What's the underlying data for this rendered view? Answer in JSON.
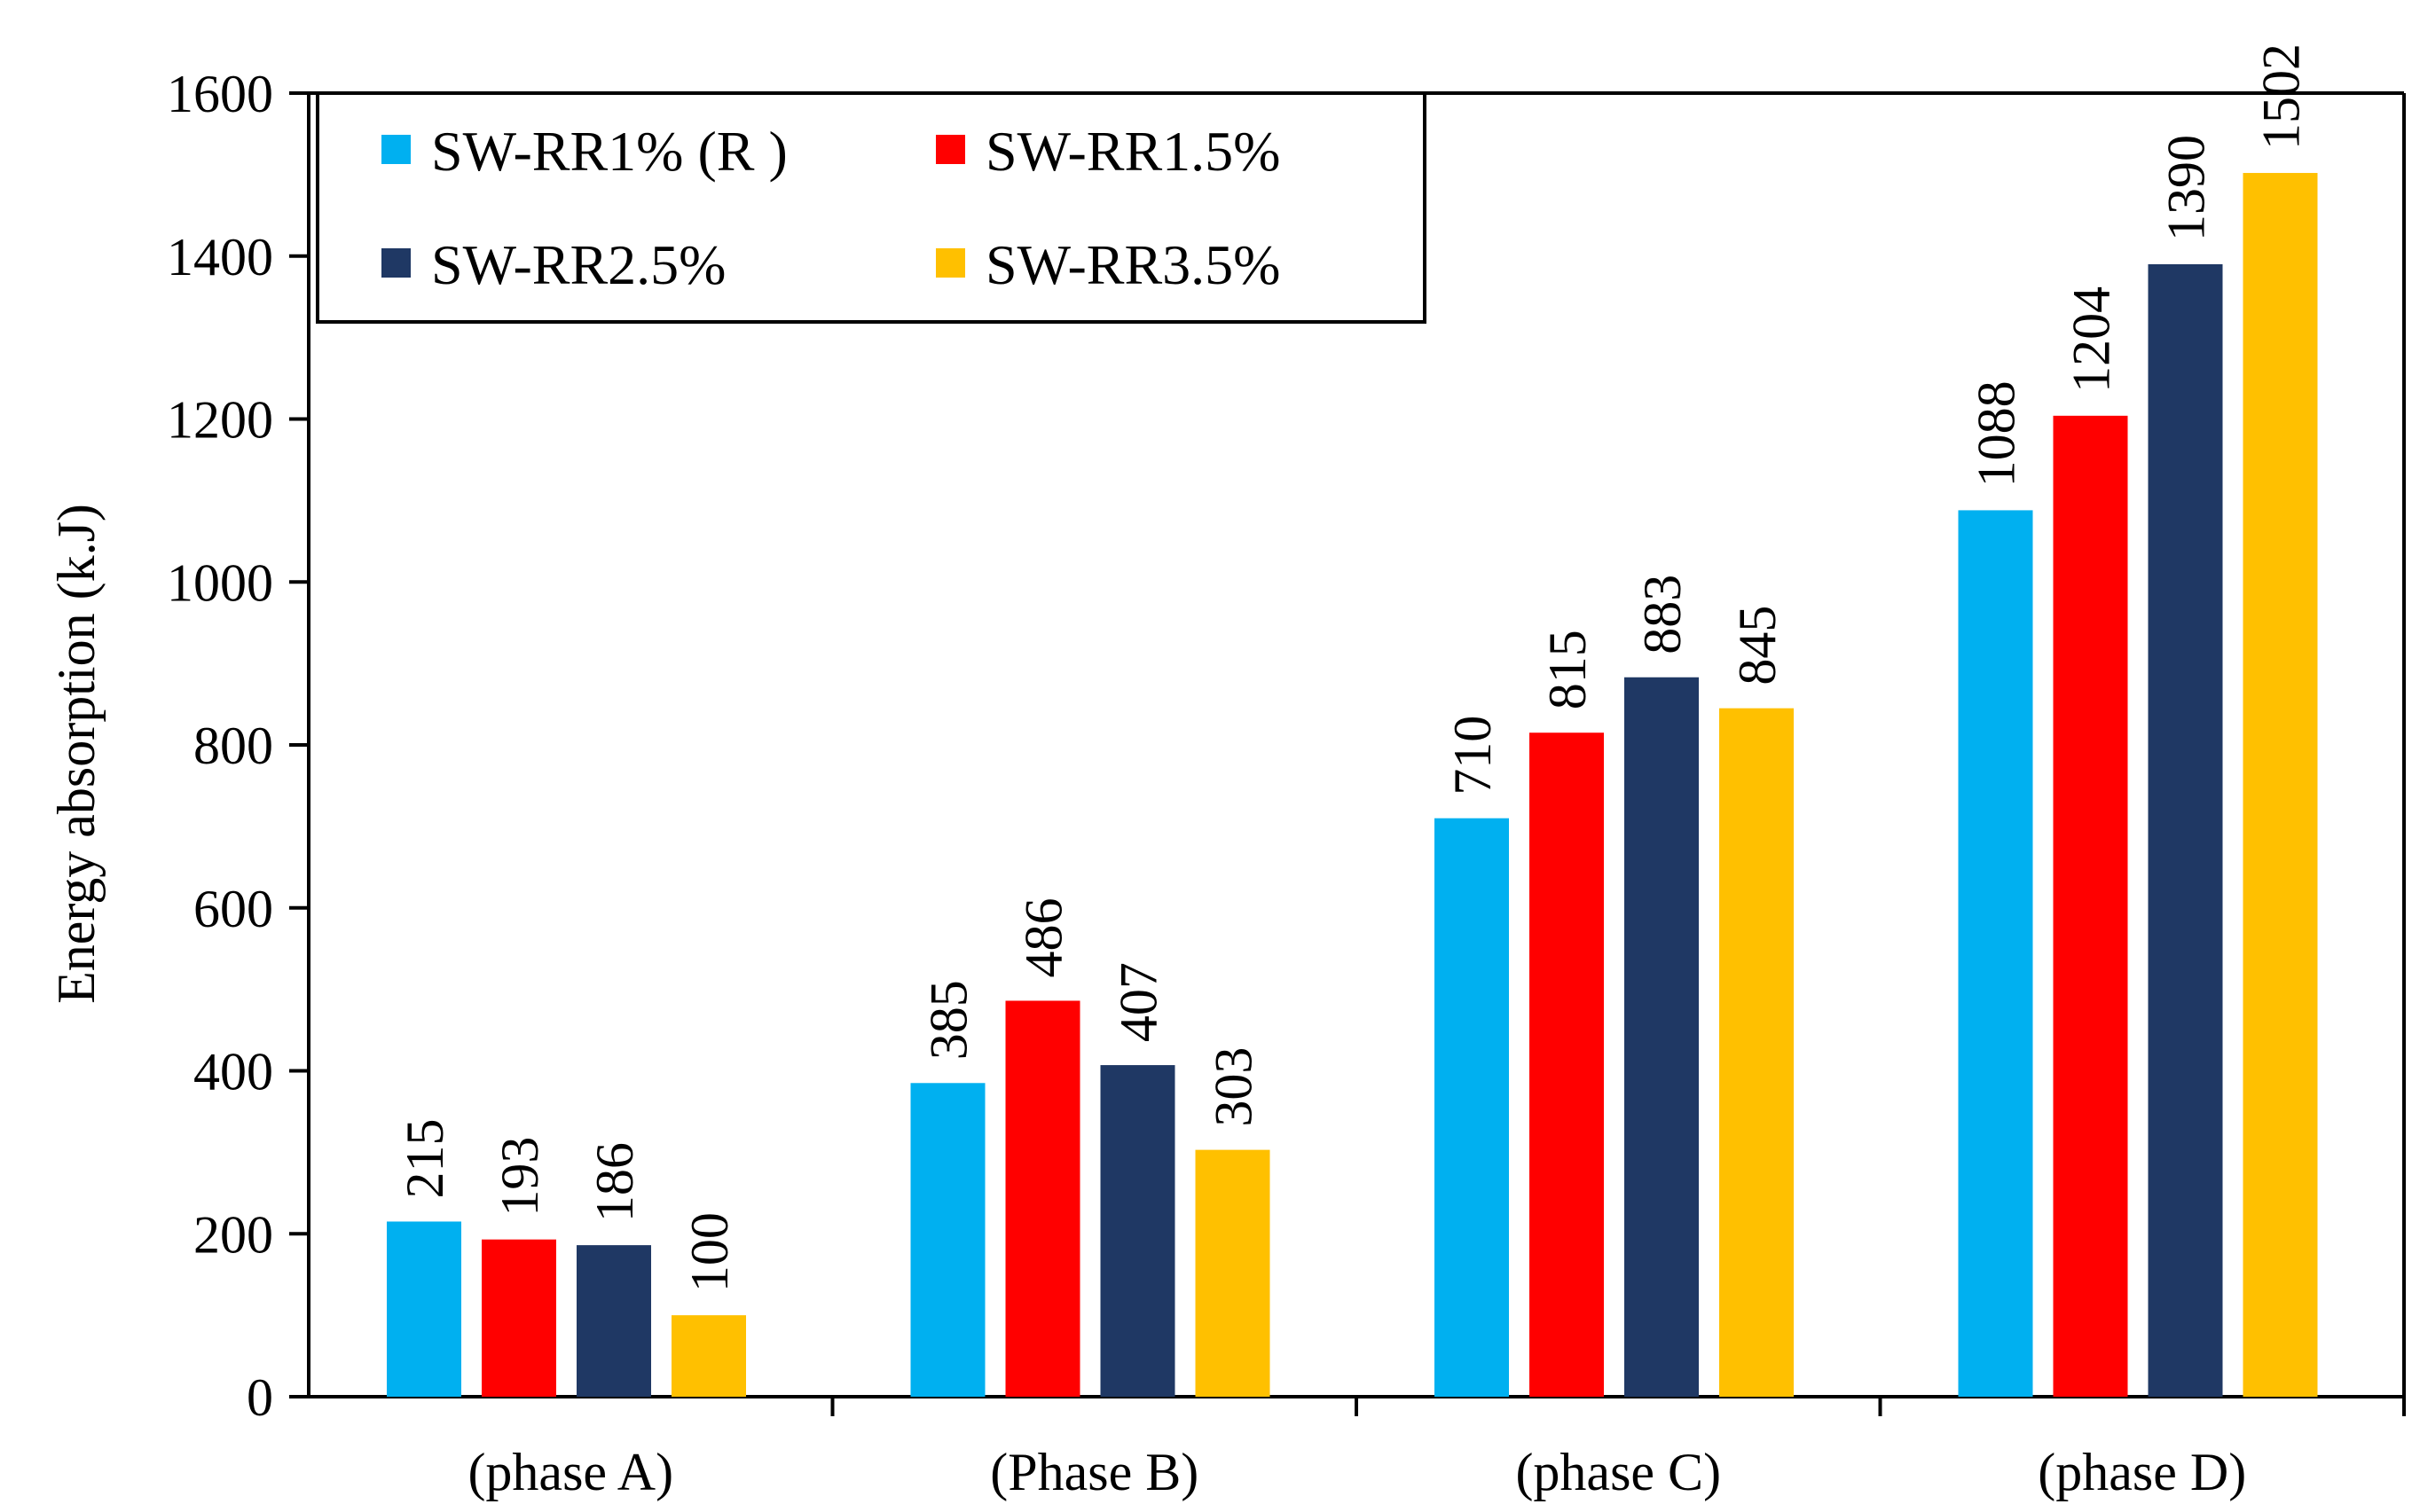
{
  "chart_data": {
    "type": "bar",
    "title": "",
    "xlabel": "",
    "ylabel": "Energy absorption (k.J)",
    "ylim": [
      0,
      1600
    ],
    "yticks": [
      "0",
      "200",
      "400",
      "600",
      "800",
      "1000",
      "1200",
      "1400",
      "1600"
    ],
    "grid": false,
    "legend_position": "top-left",
    "categories": [
      "(phase A)",
      "(Phase B)",
      "(phase C)",
      "(phase D)"
    ],
    "series": [
      {
        "name": "SW-RR1% (R )",
        "color": "#00B0F0",
        "values": [
          215,
          385,
          710,
          1088
        ],
        "labels": [
          "215",
          "385",
          "710",
          "1088"
        ]
      },
      {
        "name": "SW-RR1.5%",
        "color": "#FF0000",
        "values": [
          193,
          486,
          815,
          1204
        ],
        "labels": [
          "193",
          "486",
          "815",
          "1204"
        ]
      },
      {
        "name": "SW-RR2.5%",
        "color": "#1F3864",
        "values": [
          186,
          407,
          883,
          1390
        ],
        "labels": [
          "186",
          "407",
          "883",
          "1390"
        ]
      },
      {
        "name": "SW-RR3.5%",
        "color": "#FFC000",
        "values": [
          100,
          303,
          845,
          1502
        ],
        "labels": [
          "100",
          "303",
          "845",
          "1502"
        ]
      }
    ]
  }
}
